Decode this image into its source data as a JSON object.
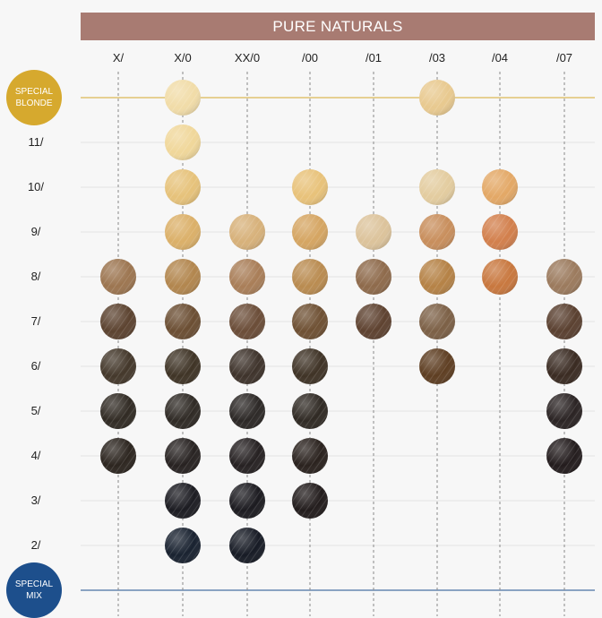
{
  "title": "PURE NATURALS",
  "columns": [
    "X/",
    "X/0",
    "XX/0",
    "/00",
    "/01",
    "/03",
    "/04",
    "/07"
  ],
  "rows": [
    "SPECIAL BLONDE",
    "11/",
    "10/",
    "9/",
    "8/",
    "7/",
    "6/",
    "5/",
    "4/",
    "3/",
    "2/",
    "SPECIAL MIX"
  ],
  "special_blonde": {
    "line1": "SPECIAL",
    "line2": "BLONDE",
    "color": "#d6a92e"
  },
  "special_mix": {
    "line1": "SPECIAL",
    "line2": "MIX",
    "color": "#1d4f8c"
  },
  "colors": {
    "banner": "#a87b72",
    "blonde_line": "#d6a92e",
    "mix_line": "#1d4f8c"
  },
  "swatches": [
    {
      "row": 0,
      "col": 1,
      "color": "#f1dca8"
    },
    {
      "row": 0,
      "col": 5,
      "color": "#e8c98f"
    },
    {
      "row": 1,
      "col": 1,
      "color": "#f0d79a"
    },
    {
      "row": 2,
      "col": 1,
      "color": "#e6c27a"
    },
    {
      "row": 2,
      "col": 3,
      "color": "#e8c27a"
    },
    {
      "row": 2,
      "col": 5,
      "color": "#e3cc9f"
    },
    {
      "row": 2,
      "col": 6,
      "color": "#e3a866"
    },
    {
      "row": 3,
      "col": 1,
      "color": "#dbb069"
    },
    {
      "row": 3,
      "col": 2,
      "color": "#d7b17a"
    },
    {
      "row": 3,
      "col": 3,
      "color": "#d5a562"
    },
    {
      "row": 3,
      "col": 4,
      "color": "#dcc39b"
    },
    {
      "row": 3,
      "col": 5,
      "color": "#c88e5c"
    },
    {
      "row": 3,
      "col": 6,
      "color": "#d27f4c"
    },
    {
      "row": 4,
      "col": 0,
      "color": "#9c7550"
    },
    {
      "row": 4,
      "col": 1,
      "color": "#b2864e"
    },
    {
      "row": 4,
      "col": 2,
      "color": "#a97e58"
    },
    {
      "row": 4,
      "col": 3,
      "color": "#b98b50"
    },
    {
      "row": 4,
      "col": 4,
      "color": "#8e6a4b"
    },
    {
      "row": 4,
      "col": 5,
      "color": "#b58246"
    },
    {
      "row": 4,
      "col": 6,
      "color": "#c8773e"
    },
    {
      "row": 4,
      "col": 7,
      "color": "#9b7a5d"
    },
    {
      "row": 5,
      "col": 0,
      "color": "#5c4330"
    },
    {
      "row": 5,
      "col": 1,
      "color": "#6b4e33"
    },
    {
      "row": 5,
      "col": 2,
      "color": "#6b4d38"
    },
    {
      "row": 5,
      "col": 3,
      "color": "#6e5033"
    },
    {
      "row": 5,
      "col": 4,
      "color": "#5e4230"
    },
    {
      "row": 5,
      "col": 5,
      "color": "#7c6046"
    },
    {
      "row": 5,
      "col": 7,
      "color": "#5a4030"
    },
    {
      "row": 6,
      "col": 0,
      "color": "#44382b"
    },
    {
      "row": 6,
      "col": 1,
      "color": "#3f3426"
    },
    {
      "row": 6,
      "col": 2,
      "color": "#3e332b"
    },
    {
      "row": 6,
      "col": 3,
      "color": "#3f3326"
    },
    {
      "row": 6,
      "col": 5,
      "color": "#5e3e22"
    },
    {
      "row": 6,
      "col": 7,
      "color": "#3a2b22"
    },
    {
      "row": 7,
      "col": 0,
      "color": "#312b24"
    },
    {
      "row": 7,
      "col": 1,
      "color": "#2f2a25"
    },
    {
      "row": 7,
      "col": 2,
      "color": "#2c2826"
    },
    {
      "row": 7,
      "col": 3,
      "color": "#302a24"
    },
    {
      "row": 7,
      "col": 7,
      "color": "#2b2424"
    },
    {
      "row": 8,
      "col": 0,
      "color": "#2c251f"
    },
    {
      "row": 8,
      "col": 1,
      "color": "#272221"
    },
    {
      "row": 8,
      "col": 2,
      "color": "#262122"
    },
    {
      "row": 8,
      "col": 3,
      "color": "#2a221e"
    },
    {
      "row": 8,
      "col": 7,
      "color": "#231c1d"
    },
    {
      "row": 9,
      "col": 1,
      "color": "#1c1c22"
    },
    {
      "row": 9,
      "col": 2,
      "color": "#1c1b20"
    },
    {
      "row": 9,
      "col": 3,
      "color": "#221c1c"
    },
    {
      "row": 10,
      "col": 1,
      "color": "#192230"
    },
    {
      "row": 10,
      "col": 2,
      "color": "#171b25"
    }
  ]
}
